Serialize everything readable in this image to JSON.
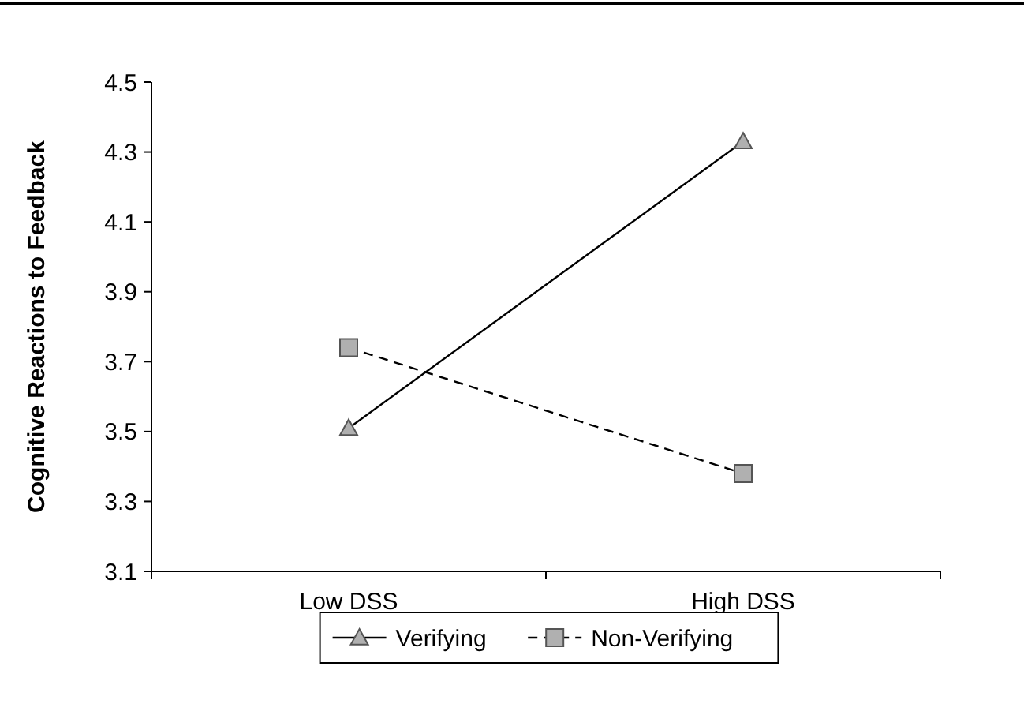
{
  "chart_data": {
    "type": "line",
    "ylabel": "Cognitive Reactions to Feedback",
    "categories": [
      "Low DSS",
      "High DSS"
    ],
    "series": [
      {
        "name": "Verifying",
        "color": "#000000",
        "values": [
          3.51,
          4.33
        ],
        "marker": "triangle",
        "line_style": "solid"
      },
      {
        "name": "Non-Verifying",
        "color": "#000000",
        "values": [
          3.74,
          3.38
        ],
        "marker": "square",
        "line_style": "dashed"
      }
    ],
    "ylim": [
      3.1,
      4.5
    ],
    "yticks": [
      3.1,
      3.3,
      3.5,
      3.7,
      3.9,
      4.1,
      4.3,
      4.5
    ],
    "legend": "bottom",
    "grid": false
  }
}
